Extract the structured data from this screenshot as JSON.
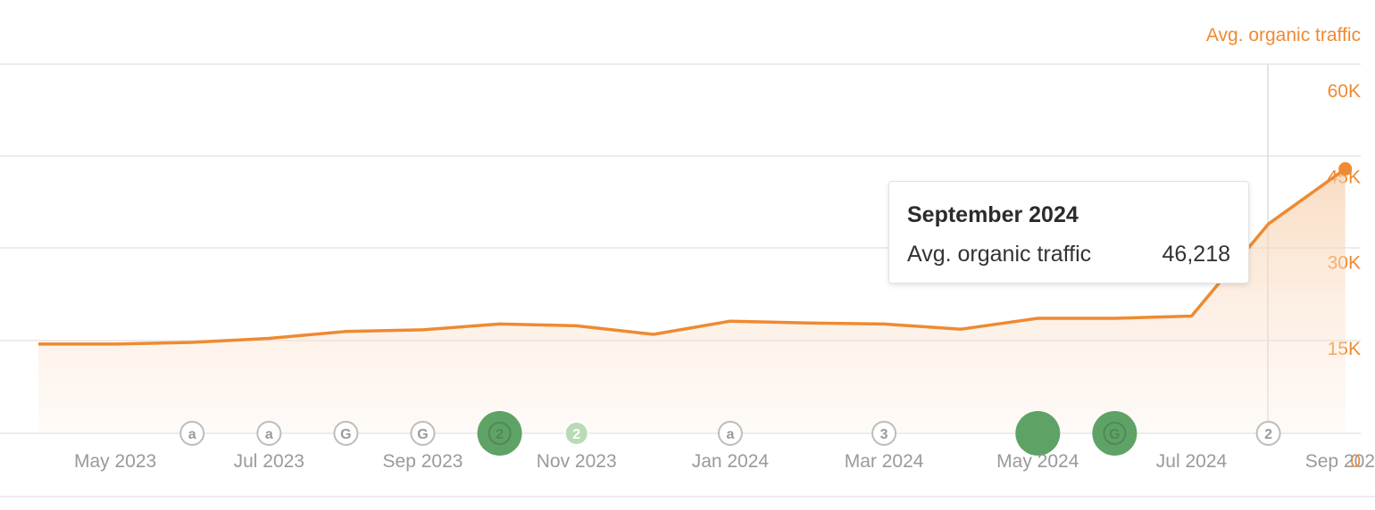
{
  "chart_data": {
    "type": "area",
    "series": [
      {
        "name": "Avg. organic traffic",
        "x": [
          "Apr 2023",
          "May 2023",
          "Jun 2023",
          "Jul 2023",
          "Aug 2023",
          "Sep 2023",
          "Oct 2023",
          "Nov 2023",
          "Dec 2023",
          "Jan 2024",
          "Feb 2024",
          "Mar 2024",
          "Apr 2024",
          "May 2024",
          "Jun 2024",
          "Jul 2024",
          "Aug 2024",
          "Sep 2024"
        ],
        "values": [
          15600,
          15600,
          15900,
          16600,
          17800,
          18100,
          19100,
          18800,
          17300,
          19600,
          19300,
          19100,
          18200,
          20100,
          20100,
          20500,
          36600,
          46218
        ]
      }
    ],
    "y_axis_title": "Avg. organic traffic",
    "y_ticks": [
      "60K",
      "45K",
      "30K",
      "15K",
      "0"
    ],
    "x_tick_labels": [
      "May 2023",
      "Jul 2023",
      "Sep 2023",
      "Nov 2023",
      "Jan 2024",
      "Mar 2024",
      "May 2024",
      "Jul 2024",
      "Sep 2024"
    ],
    "ylim": [
      0,
      60000
    ],
    "grid": true,
    "colors": {
      "line": "#ee8a32",
      "axis_text": "#ee8a32",
      "tick_text": "#9a9a9a",
      "grid": "#e6e6e6",
      "marker_big": "#5fa266",
      "marker_light": "#b8dcb6"
    },
    "event_markers": [
      {
        "month": "Jun 2023",
        "label": "a",
        "style": "outline"
      },
      {
        "month": "Jul 2023",
        "label": "a",
        "style": "outline"
      },
      {
        "month": "Aug 2023",
        "label": "G",
        "style": "outline"
      },
      {
        "month": "Sep 2023",
        "label": "G",
        "style": "outline"
      },
      {
        "month": "Oct 2023",
        "label": "2",
        "style": "big"
      },
      {
        "month": "Nov 2023",
        "label": "2",
        "style": "light"
      },
      {
        "month": "Jan 2024",
        "label": "a",
        "style": "outline"
      },
      {
        "month": "Mar 2024",
        "label": "3",
        "style": "outline"
      },
      {
        "month": "May 2024",
        "label": "",
        "style": "big"
      },
      {
        "month": "Jun 2024",
        "label": "G",
        "style": "big"
      },
      {
        "month": "Aug 2024",
        "label": "2",
        "style": "outline"
      }
    ]
  },
  "tooltip": {
    "title": "September 2024",
    "label": "Avg. organic traffic",
    "value": "46,218"
  }
}
